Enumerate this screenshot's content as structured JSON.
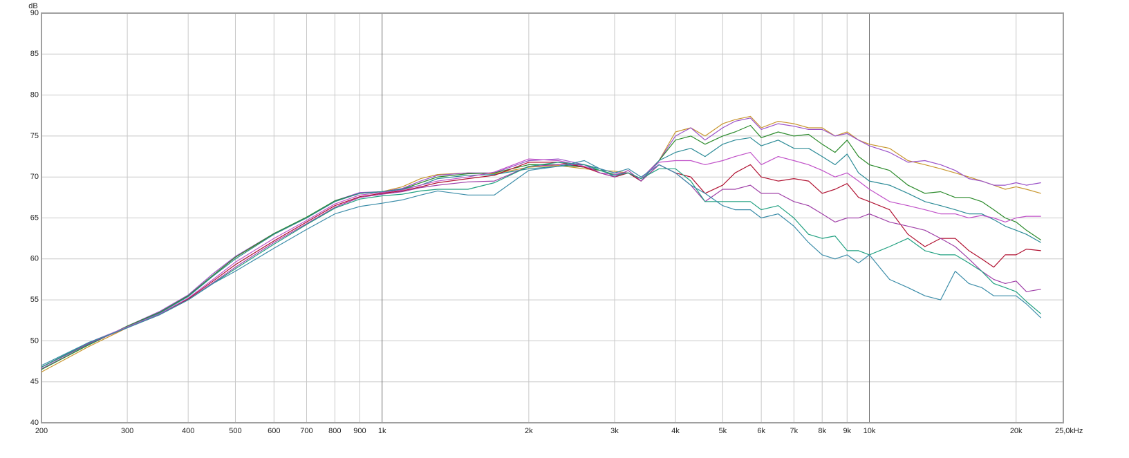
{
  "chart_data": {
    "type": "line",
    "y_label": "dB",
    "xscale": "log",
    "grid": true,
    "xlim": [
      200,
      25000
    ],
    "ylim": [
      40,
      90
    ],
    "xticks": [
      200,
      300,
      400,
      500,
      600,
      700,
      800,
      900,
      {
        "value": 1000,
        "label": "1k"
      },
      {
        "value": 2000,
        "label": "2k"
      },
      {
        "value": 3000,
        "label": "3k"
      },
      {
        "value": 4000,
        "label": "4k"
      },
      {
        "value": 5000,
        "label": "5k"
      },
      {
        "value": 6000,
        "label": "6k"
      },
      {
        "value": 7000,
        "label": "7k"
      },
      {
        "value": 8000,
        "label": "8k"
      },
      {
        "value": 9000,
        "label": "9k"
      },
      {
        "value": 10000,
        "label": "10k"
      },
      {
        "value": 20000,
        "label": "20k"
      },
      {
        "value": 25000,
        "label": "25,0kHz"
      }
    ],
    "yticks": [
      40,
      45,
      50,
      55,
      60,
      65,
      70,
      75,
      80,
      85,
      90
    ],
    "x": [
      200,
      250,
      300,
      350,
      400,
      450,
      500,
      600,
      700,
      800,
      900,
      1000,
      1100,
      1200,
      1300,
      1500,
      1700,
      2000,
      2300,
      2600,
      2800,
      3000,
      3200,
      3400,
      3700,
      4000,
      4300,
      4600,
      5000,
      5300,
      5700,
      6000,
      6500,
      7000,
      7500,
      8000,
      8500,
      9000,
      9500,
      10000,
      11000,
      12000,
      13000,
      14000,
      15000,
      16000,
      17000,
      18000,
      19000,
      20000,
      21000,
      22500
    ],
    "series": [
      {
        "color": "#c8962e",
        "values": [
          46.2,
          49.3,
          51.6,
          53.4,
          55.5,
          58,
          60.2,
          63,
          65,
          67,
          68,
          68.2,
          68.8,
          69.8,
          70.3,
          70.5,
          70.4,
          71.2,
          71.4,
          71,
          70.8,
          70.7,
          70.5,
          69.8,
          72,
          75.5,
          76,
          75,
          76.5,
          77,
          77.4,
          76,
          76.8,
          76.5,
          76,
          76,
          75,
          75.5,
          74.5,
          74,
          73.5,
          72,
          71.5,
          71,
          70.5,
          70,
          69.5,
          69,
          68.5,
          68.8,
          68.5,
          68
        ]
      },
      {
        "color": "#9a50c8",
        "values": [
          46.6,
          49.5,
          51.8,
          53.6,
          55.6,
          58.2,
          60.3,
          63.1,
          65,
          67.1,
          68.1,
          68.2,
          68.6,
          69.5,
          70.2,
          70.5,
          70.5,
          72,
          72.2,
          71.5,
          71,
          70.5,
          70.5,
          69.8,
          72,
          75,
          76,
          74.5,
          76,
          76.8,
          77.2,
          75.8,
          76.5,
          76.2,
          75.8,
          75.8,
          75,
          75.3,
          74.5,
          73.8,
          73,
          71.8,
          72,
          71.5,
          70.8,
          69.8,
          69.5,
          69,
          69,
          69.3,
          69,
          69.3
        ]
      },
      {
        "color": "#2a8a2a",
        "values": [
          46.5,
          49.5,
          51.8,
          53.5,
          55.5,
          58,
          60.2,
          63.1,
          65.1,
          67.1,
          68,
          68.2,
          68.5,
          69.3,
          70,
          70.4,
          70.5,
          71.5,
          71.5,
          71.2,
          70.8,
          70.3,
          70.5,
          69.5,
          72,
          74.5,
          75,
          74,
          75,
          75.5,
          76.3,
          74.8,
          75.5,
          75,
          75.2,
          74,
          73,
          74.5,
          72.5,
          71.5,
          70.8,
          69,
          68,
          68.2,
          67.5,
          67.5,
          67,
          66,
          65,
          64.5,
          63.5,
          62.3
        ]
      },
      {
        "color": "#2a8a96",
        "values": [
          46.8,
          49.6,
          51.7,
          53.4,
          55.4,
          57.9,
          60,
          63,
          65,
          67,
          68,
          68.2,
          68.5,
          69,
          69.8,
          70.2,
          70.3,
          71,
          71.3,
          71.5,
          71,
          70,
          70.5,
          69.5,
          72,
          73,
          73.5,
          72.5,
          74,
          74.5,
          74.8,
          73.8,
          74.5,
          73.5,
          73.5,
          72.5,
          71.5,
          72.8,
          70.5,
          69.5,
          69,
          68,
          67,
          66.5,
          66,
          65.5,
          65.5,
          64.8,
          64,
          63.5,
          63,
          62
        ]
      },
      {
        "color": "#c050c8",
        "values": [
          46.8,
          49.8,
          51.7,
          53.3,
          55.2,
          57.5,
          59.6,
          62.5,
          64.7,
          66.7,
          67.8,
          68.1,
          68.4,
          69,
          69.5,
          70,
          70.6,
          72.2,
          72,
          71.3,
          70.5,
          70.3,
          70.5,
          69.8,
          71.8,
          72,
          72,
          71.5,
          72,
          72.5,
          73,
          71.5,
          72.5,
          72,
          71.5,
          70.8,
          70,
          70.5,
          69.5,
          68.5,
          67,
          66.5,
          66,
          65.5,
          65.5,
          65,
          65.3,
          65,
          64.5,
          65,
          65.2,
          65.2
        ]
      },
      {
        "color": "#b01030",
        "values": [
          46.8,
          49.7,
          51.6,
          53.2,
          55.1,
          57.3,
          59.3,
          62.2,
          64.5,
          66.5,
          67.6,
          68,
          68.3,
          68.8,
          69.3,
          69.8,
          70.2,
          71.8,
          71.8,
          71.2,
          70.5,
          70,
          70.5,
          69.5,
          71.5,
          70.5,
          70,
          68,
          69,
          70.5,
          71.5,
          70,
          69.5,
          69.8,
          69.5,
          68,
          68.5,
          69.2,
          67.5,
          67,
          66,
          63,
          61.5,
          62.5,
          62.5,
          61,
          60,
          59,
          60.5,
          60.5,
          61.2,
          61
        ]
      },
      {
        "color": "#a040a8",
        "values": [
          46.8,
          49.7,
          51.6,
          53.2,
          55,
          57.1,
          59,
          62,
          64.3,
          66.3,
          67.5,
          67.9,
          68.2,
          68.7,
          69,
          69.4,
          69.5,
          71.3,
          71.5,
          71.5,
          70.5,
          70,
          70.8,
          69.5,
          71.5,
          70.5,
          69,
          67,
          68.5,
          68.5,
          69,
          68,
          68,
          67,
          66.5,
          65.5,
          64.5,
          65,
          65,
          65.5,
          64.5,
          64,
          63.5,
          62.5,
          61.5,
          60,
          58.5,
          57.5,
          57,
          57.3,
          56,
          56.3
        ]
      },
      {
        "color": "#20a080",
        "values": [
          46.8,
          49.8,
          51.6,
          53.2,
          55,
          57,
          58.8,
          61.8,
          64.2,
          66.2,
          67.3,
          67.7,
          67.9,
          68.3,
          68.5,
          68.5,
          69.3,
          71.3,
          71.8,
          71.5,
          70.8,
          70.2,
          70.5,
          69.8,
          71,
          71,
          69.5,
          67,
          67,
          67,
          67,
          66,
          66.5,
          65,
          63,
          62.5,
          62.8,
          61,
          61,
          60.5,
          61.5,
          62.5,
          61,
          60.5,
          60.5,
          59.5,
          58.5,
          57,
          56.5,
          56,
          54.8,
          53.3
        ]
      },
      {
        "color": "#3a8ca8",
        "values": [
          47,
          49.8,
          51.6,
          53.2,
          55,
          57,
          58.5,
          61.3,
          63.6,
          65.5,
          66.4,
          66.8,
          67.2,
          67.8,
          68.3,
          67.8,
          67.8,
          70.8,
          71.3,
          72,
          71,
          70.5,
          71,
          70,
          71.5,
          70.5,
          69,
          68,
          66.5,
          66,
          66,
          65,
          65.5,
          64,
          62,
          60.5,
          60,
          60.5,
          59.5,
          60.5,
          57.5,
          56.5,
          55.5,
          55,
          58.5,
          57,
          56.5,
          55.5,
          55.5,
          55.5,
          54.5,
          52.8
        ]
      }
    ]
  }
}
